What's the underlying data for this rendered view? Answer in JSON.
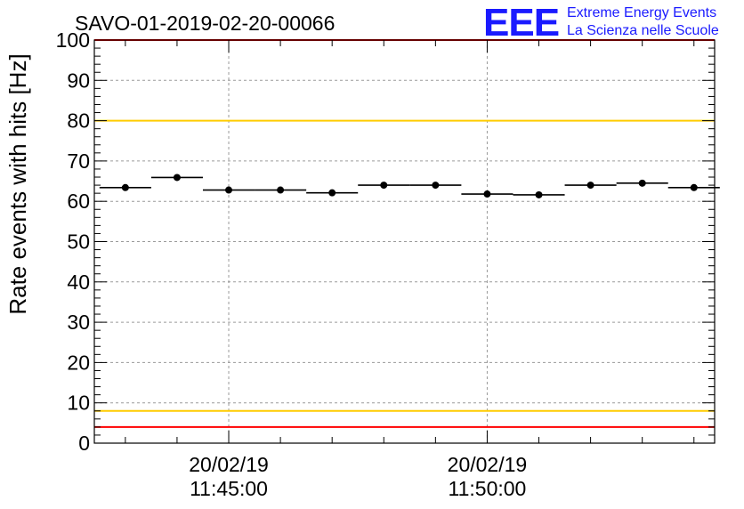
{
  "chart_data": {
    "type": "scatter",
    "title": "SAVO-01-2019-02-20-00066",
    "ylabel": "Rate events with hits [Hz]",
    "xlabel": "",
    "ylim": [
      0,
      100
    ],
    "y_ticks": [
      0,
      10,
      20,
      30,
      40,
      50,
      60,
      70,
      80,
      90,
      100
    ],
    "x_range_minutes": [
      -2.6,
      9.4
    ],
    "x_tick_labels": [
      {
        "minute": 0,
        "date": "20/02/19",
        "time": "11:45:00"
      },
      {
        "minute": 5,
        "date": "20/02/19",
        "time": "11:50:00"
      }
    ],
    "grid": true,
    "bin_half_width_minutes": 0.5,
    "series": [
      {
        "name": "rate",
        "x_minutes": [
          -2.0,
          -1.0,
          0.0,
          1.0,
          2.0,
          3.0,
          4.0,
          5.0,
          6.0,
          7.0,
          8.0,
          9.0
        ],
        "values": [
          63.4,
          65.9,
          62.8,
          62.8,
          62.1,
          64.0,
          64.0,
          61.8,
          61.6,
          64.0,
          64.5,
          63.4
        ]
      }
    ],
    "reference_lines": [
      {
        "name": "upper-limit",
        "value": 100,
        "color": "#ff0000"
      },
      {
        "name": "upper-warning",
        "value": 80,
        "color": "#ffcc00"
      },
      {
        "name": "lower-warning",
        "value": 8,
        "color": "#ffcc00"
      },
      {
        "name": "lower-limit",
        "value": 4,
        "color": "#ff0000"
      }
    ]
  },
  "logo": {
    "mark": "EEE",
    "line1": "Extreme Energy Events",
    "line2": "La Scienza nelle Scuole",
    "color": "#1a1aff"
  }
}
